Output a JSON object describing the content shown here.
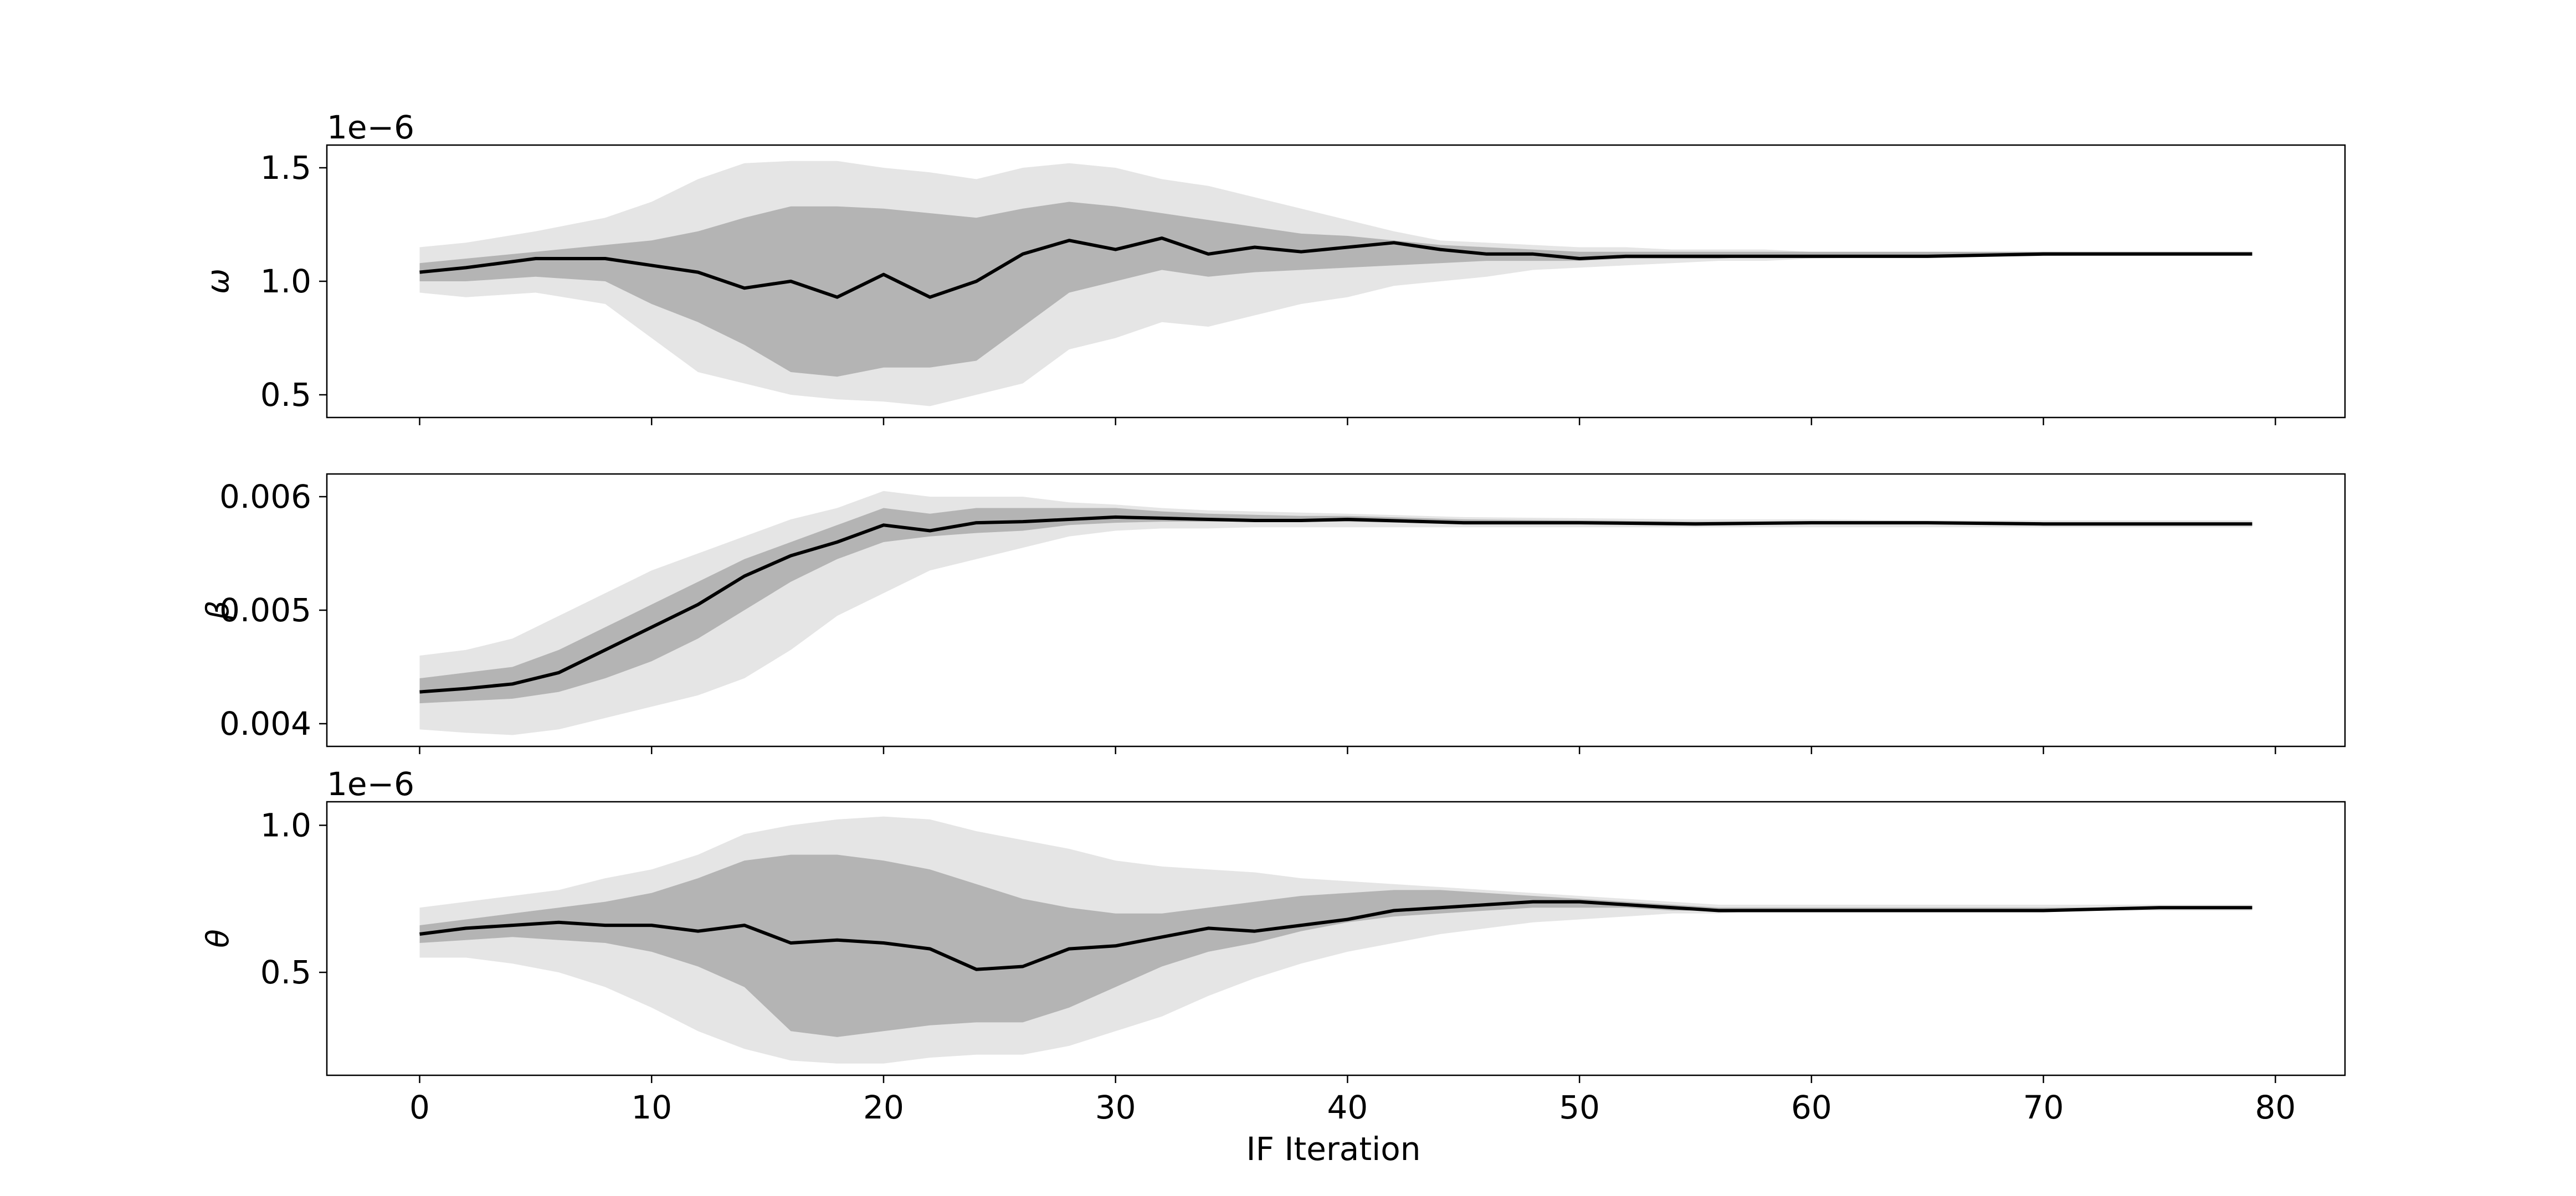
{
  "chart_data": {
    "type": "area",
    "xlabel": "IF Iteration",
    "xlim": [
      -4,
      83
    ],
    "x_ticks": [
      0,
      10,
      20,
      30,
      40,
      50,
      60,
      70,
      80
    ],
    "x_tick_labels": [
      "0",
      "10",
      "20",
      "30",
      "40",
      "50",
      "60",
      "70",
      "80"
    ],
    "colors": {
      "outer_band": "#e5e5e5",
      "inner_band": "#b4b4b4",
      "median_line": "#000000"
    },
    "panels": [
      {
        "ylabel": "ω",
        "offset_label": "1e−6",
        "ylim": [
          0.4,
          1.6
        ],
        "y_ticks": [
          0.5,
          1.0,
          1.5
        ],
        "y_tick_labels": [
          "0.5",
          "1.0",
          "1.5"
        ],
        "series": [
          {
            "x": [
              0,
              2,
              5,
              8,
              10,
              12,
              14,
              16,
              18,
              20,
              22,
              24,
              26,
              28,
              30,
              32,
              34,
              36,
              38,
              40,
              42,
              44,
              46,
              48,
              50,
              52,
              54,
              56,
              58,
              60,
              65,
              70,
              75,
              79
            ],
            "lower_outer": [
              0.95,
              0.93,
              0.95,
              0.9,
              0.75,
              0.6,
              0.55,
              0.5,
              0.48,
              0.47,
              0.45,
              0.5,
              0.55,
              0.7,
              0.75,
              0.82,
              0.8,
              0.85,
              0.9,
              0.93,
              0.98,
              1.0,
              1.02,
              1.05,
              1.06,
              1.07,
              1.08,
              1.09,
              1.09,
              1.1,
              1.11,
              1.11,
              1.12,
              1.12
            ],
            "upper_outer": [
              1.15,
              1.17,
              1.22,
              1.28,
              1.35,
              1.45,
              1.52,
              1.53,
              1.53,
              1.5,
              1.48,
              1.45,
              1.5,
              1.52,
              1.5,
              1.45,
              1.42,
              1.37,
              1.32,
              1.27,
              1.22,
              1.18,
              1.17,
              1.16,
              1.15,
              1.15,
              1.14,
              1.14,
              1.14,
              1.13,
              1.13,
              1.13,
              1.13,
              1.13
            ],
            "lower_inner": [
              1.0,
              1.0,
              1.02,
              1.0,
              0.9,
              0.82,
              0.72,
              0.6,
              0.58,
              0.62,
              0.62,
              0.65,
              0.8,
              0.95,
              1.0,
              1.05,
              1.02,
              1.04,
              1.05,
              1.06,
              1.07,
              1.08,
              1.09,
              1.09,
              1.09,
              1.1,
              1.1,
              1.1,
              1.11,
              1.11,
              1.11,
              1.12,
              1.12,
              1.12
            ],
            "upper_inner": [
              1.08,
              1.1,
              1.13,
              1.16,
              1.18,
              1.22,
              1.28,
              1.33,
              1.33,
              1.32,
              1.3,
              1.28,
              1.32,
              1.35,
              1.33,
              1.3,
              1.27,
              1.24,
              1.21,
              1.2,
              1.18,
              1.16,
              1.15,
              1.14,
              1.13,
              1.13,
              1.13,
              1.13,
              1.13,
              1.13,
              1.13,
              1.13,
              1.13,
              1.13
            ],
            "median": [
              1.04,
              1.06,
              1.1,
              1.1,
              1.07,
              1.04,
              0.97,
              1.0,
              0.93,
              1.03,
              0.93,
              1.0,
              1.12,
              1.18,
              1.14,
              1.19,
              1.12,
              1.15,
              1.13,
              1.15,
              1.17,
              1.14,
              1.12,
              1.12,
              1.1,
              1.11,
              1.11,
              1.11,
              1.11,
              1.11,
              1.11,
              1.12,
              1.12,
              1.12
            ]
          }
        ]
      },
      {
        "ylabel": "β",
        "offset_label": "",
        "ylim": [
          0.0038,
          0.0062
        ],
        "y_ticks": [
          0.004,
          0.005,
          0.006
        ],
        "y_tick_labels": [
          "0.004",
          "0.005",
          "0.006"
        ],
        "series": [
          {
            "x": [
              0,
              2,
              4,
              6,
              8,
              10,
              12,
              14,
              16,
              18,
              20,
              22,
              24,
              26,
              28,
              30,
              32,
              34,
              36,
              38,
              40,
              45,
              50,
              55,
              60,
              65,
              70,
              75,
              79
            ],
            "lower_outer": [
              0.00395,
              0.00392,
              0.0039,
              0.00395,
              0.00405,
              0.00415,
              0.00425,
              0.0044,
              0.00465,
              0.00495,
              0.00515,
              0.00535,
              0.00545,
              0.00555,
              0.00565,
              0.0057,
              0.00572,
              0.00572,
              0.00573,
              0.00573,
              0.00573,
              0.00573,
              0.00573,
              0.00573,
              0.00573,
              0.00573,
              0.00573,
              0.00573,
              0.00573
            ],
            "upper_outer": [
              0.0046,
              0.00465,
              0.00475,
              0.00495,
              0.00515,
              0.00535,
              0.0055,
              0.00565,
              0.0058,
              0.0059,
              0.00605,
              0.006,
              0.006,
              0.006,
              0.00595,
              0.00593,
              0.0059,
              0.00588,
              0.00587,
              0.00586,
              0.00585,
              0.00582,
              0.00581,
              0.0058,
              0.0058,
              0.00579,
              0.00579,
              0.00579,
              0.00579
            ],
            "lower_inner": [
              0.00418,
              0.0042,
              0.00422,
              0.00428,
              0.0044,
              0.00455,
              0.00475,
              0.005,
              0.00525,
              0.00545,
              0.0056,
              0.00565,
              0.00568,
              0.0057,
              0.00575,
              0.00577,
              0.00578,
              0.00578,
              0.00578,
              0.00578,
              0.00578,
              0.00576,
              0.00576,
              0.00576,
              0.00576,
              0.00576,
              0.00576,
              0.00576,
              0.00576
            ],
            "upper_inner": [
              0.0044,
              0.00445,
              0.0045,
              0.00465,
              0.00485,
              0.00505,
              0.00525,
              0.00545,
              0.0056,
              0.00575,
              0.0059,
              0.00585,
              0.0059,
              0.0059,
              0.0059,
              0.0059,
              0.00587,
              0.00585,
              0.00584,
              0.00583,
              0.00583,
              0.0058,
              0.00579,
              0.00578,
              0.00578,
              0.00577,
              0.00577,
              0.00577,
              0.00577
            ],
            "median": [
              0.00428,
              0.00431,
              0.00435,
              0.00445,
              0.00465,
              0.00485,
              0.00505,
              0.0053,
              0.00548,
              0.0056,
              0.00575,
              0.0057,
              0.00577,
              0.00578,
              0.0058,
              0.00582,
              0.00581,
              0.0058,
              0.00579,
              0.00579,
              0.0058,
              0.00577,
              0.00577,
              0.00576,
              0.00577,
              0.00577,
              0.00576,
              0.00576,
              0.00576
            ]
          }
        ]
      },
      {
        "ylabel": "θ",
        "offset_label": "1e−6",
        "ylim": [
          0.15,
          1.08
        ],
        "y_ticks": [
          0.5,
          1.0
        ],
        "y_tick_labels": [
          "0.5",
          "1.0"
        ],
        "series": [
          {
            "x": [
              0,
              2,
              4,
              6,
              8,
              10,
              12,
              14,
              16,
              18,
              20,
              22,
              24,
              26,
              28,
              30,
              32,
              34,
              36,
              38,
              40,
              42,
              44,
              46,
              48,
              50,
              52,
              54,
              56,
              58,
              60,
              65,
              70,
              75,
              79
            ],
            "lower_outer": [
              0.55,
              0.55,
              0.53,
              0.5,
              0.45,
              0.38,
              0.3,
              0.24,
              0.2,
              0.19,
              0.19,
              0.21,
              0.22,
              0.22,
              0.25,
              0.3,
              0.35,
              0.42,
              0.48,
              0.53,
              0.57,
              0.6,
              0.63,
              0.65,
              0.67,
              0.68,
              0.69,
              0.7,
              0.7,
              0.71,
              0.71,
              0.71,
              0.71,
              0.71,
              0.71
            ],
            "upper_outer": [
              0.72,
              0.74,
              0.76,
              0.78,
              0.82,
              0.85,
              0.9,
              0.97,
              1.0,
              1.02,
              1.03,
              1.02,
              0.98,
              0.95,
              0.92,
              0.88,
              0.86,
              0.85,
              0.84,
              0.82,
              0.81,
              0.8,
              0.79,
              0.78,
              0.77,
              0.76,
              0.75,
              0.74,
              0.73,
              0.73,
              0.73,
              0.73,
              0.73,
              0.73,
              0.73
            ],
            "lower_inner": [
              0.6,
              0.61,
              0.62,
              0.61,
              0.6,
              0.57,
              0.52,
              0.45,
              0.3,
              0.28,
              0.3,
              0.32,
              0.33,
              0.33,
              0.38,
              0.45,
              0.52,
              0.57,
              0.6,
              0.64,
              0.67,
              0.69,
              0.7,
              0.71,
              0.72,
              0.72,
              0.72,
              0.71,
              0.71,
              0.71,
              0.71,
              0.71,
              0.71,
              0.72,
              0.72
            ],
            "upper_inner": [
              0.66,
              0.68,
              0.7,
              0.72,
              0.74,
              0.77,
              0.82,
              0.88,
              0.9,
              0.9,
              0.88,
              0.85,
              0.8,
              0.75,
              0.72,
              0.7,
              0.7,
              0.72,
              0.74,
              0.76,
              0.77,
              0.78,
              0.78,
              0.77,
              0.76,
              0.75,
              0.74,
              0.73,
              0.72,
              0.72,
              0.72,
              0.72,
              0.72,
              0.72,
              0.72
            ],
            "median": [
              0.63,
              0.65,
              0.66,
              0.67,
              0.66,
              0.66,
              0.64,
              0.66,
              0.6,
              0.61,
              0.6,
              0.58,
              0.51,
              0.52,
              0.58,
              0.59,
              0.62,
              0.65,
              0.64,
              0.66,
              0.68,
              0.71,
              0.72,
              0.73,
              0.74,
              0.74,
              0.73,
              0.72,
              0.71,
              0.71,
              0.71,
              0.71,
              0.71,
              0.72,
              0.72
            ]
          }
        ]
      }
    ]
  }
}
